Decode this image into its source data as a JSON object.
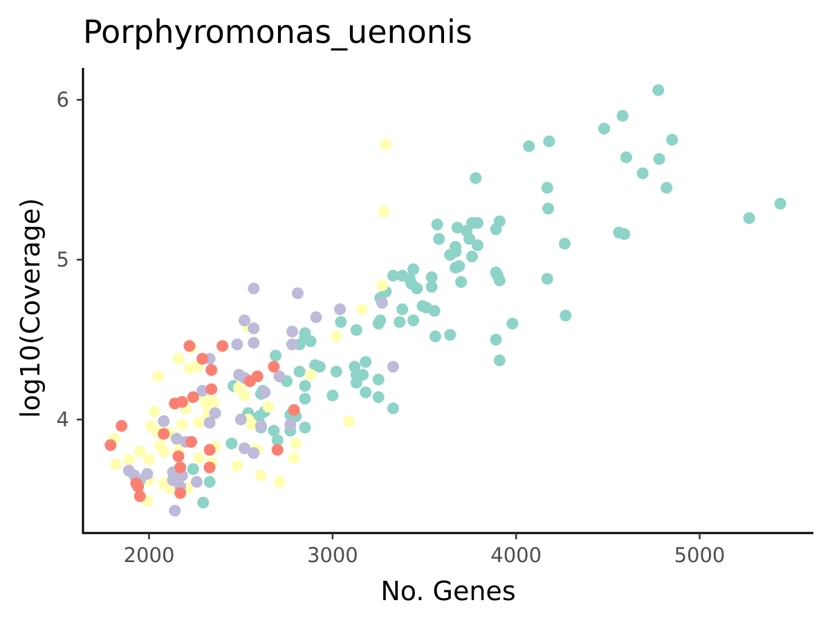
{
  "chart_data": {
    "type": "scatter",
    "title": "Porphyromonas_uenonis",
    "xlabel": "No. Genes",
    "ylabel": "log10(Coverage)",
    "xlim": [
      1640,
      5620
    ],
    "ylim": [
      3.29,
      6.2
    ],
    "xticks": [
      "2000",
      "3000",
      "4000",
      "5000"
    ],
    "yticks": [
      "4",
      "5",
      "6"
    ],
    "grid": false,
    "legend": "none",
    "series": [
      {
        "color": "#8DD3C7",
        "points": [
          [
            4775,
            6.06
          ],
          [
            4580,
            5.9
          ],
          [
            4480,
            5.82
          ],
          [
            4850,
            5.75
          ],
          [
            4180,
            5.74
          ],
          [
            4070,
            5.71
          ],
          [
            4600,
            5.64
          ],
          [
            4780,
            5.63
          ],
          [
            4690,
            5.54
          ],
          [
            3780,
            5.51
          ],
          [
            4170,
            5.45
          ],
          [
            4820,
            5.45
          ],
          [
            5440,
            5.35
          ],
          [
            4175,
            5.32
          ],
          [
            5270,
            5.26
          ],
          [
            3910,
            5.24
          ],
          [
            3760,
            5.23
          ],
          [
            3790,
            5.23
          ],
          [
            3570,
            5.22
          ],
          [
            3680,
            5.2
          ],
          [
            3730,
            5.18
          ],
          [
            3890,
            5.19
          ],
          [
            4560,
            5.17
          ],
          [
            4590,
            5.16
          ],
          [
            3580,
            5.13
          ],
          [
            3745,
            5.13
          ],
          [
            4265,
            5.1
          ],
          [
            3790,
            5.09
          ],
          [
            3670,
            5.08
          ],
          [
            3670,
            5.05
          ],
          [
            3640,
            5.03
          ],
          [
            3760,
            5.02
          ],
          [
            3690,
            4.96
          ],
          [
            3670,
            4.95
          ],
          [
            3440,
            4.94
          ],
          [
            3330,
            4.9
          ],
          [
            3380,
            4.9
          ],
          [
            3420,
            4.88
          ],
          [
            3540,
            4.89
          ],
          [
            3890,
            4.92
          ],
          [
            3900,
            4.9
          ],
          [
            3910,
            4.87
          ],
          [
            4170,
            4.88
          ],
          [
            3700,
            4.86
          ],
          [
            3430,
            4.85
          ],
          [
            3460,
            4.82
          ],
          [
            3540,
            4.83
          ],
          [
            3290,
            4.8
          ],
          [
            3260,
            4.76
          ],
          [
            3380,
            4.69
          ],
          [
            3490,
            4.71
          ],
          [
            3510,
            4.7
          ],
          [
            3555,
            4.68
          ],
          [
            3440,
            4.62
          ],
          [
            3365,
            4.61
          ],
          [
            3250,
            4.6
          ],
          [
            3260,
            4.62
          ],
          [
            3045,
            4.61
          ],
          [
            3130,
            4.56
          ],
          [
            3980,
            4.6
          ],
          [
            4270,
            4.65
          ],
          [
            3890,
            4.5
          ],
          [
            3560,
            4.52
          ],
          [
            3640,
            4.53
          ],
          [
            2850,
            4.54
          ],
          [
            2850,
            4.51
          ],
          [
            2880,
            4.49
          ],
          [
            2820,
            4.47
          ],
          [
            3910,
            4.37
          ],
          [
            2690,
            4.4
          ],
          [
            2905,
            4.34
          ],
          [
            2930,
            4.33
          ],
          [
            2820,
            4.3
          ],
          [
            3020,
            4.3
          ],
          [
            3120,
            4.33
          ],
          [
            3180,
            4.36
          ],
          [
            3130,
            4.28
          ],
          [
            3165,
            4.28
          ],
          [
            3130,
            4.23
          ],
          [
            3250,
            4.25
          ],
          [
            2750,
            4.24
          ],
          [
            2850,
            4.21
          ],
          [
            2460,
            4.21
          ],
          [
            2620,
            4.18
          ],
          [
            2610,
            4.16
          ],
          [
            3000,
            4.15
          ],
          [
            3180,
            4.17
          ],
          [
            3250,
            4.14
          ],
          [
            2850,
            4.13
          ],
          [
            3330,
            4.07
          ],
          [
            2630,
            4.05
          ],
          [
            2540,
            4.04
          ],
          [
            2600,
            4.02
          ],
          [
            2770,
            4.03
          ],
          [
            2800,
            4.02
          ],
          [
            2600,
            3.98
          ],
          [
            2610,
            3.95
          ],
          [
            2680,
            3.93
          ],
          [
            2770,
            3.93
          ],
          [
            2850,
            3.95
          ],
          [
            2700,
            3.87
          ],
          [
            2450,
            3.85
          ],
          [
            2240,
            3.69
          ],
          [
            2330,
            3.61
          ],
          [
            2130,
            3.62
          ],
          [
            2295,
            3.48
          ]
        ]
      },
      {
        "color": "#FFFFB3",
        "points": [
          [
            3290,
            5.72
          ],
          [
            3280,
            5.3
          ],
          [
            3270,
            4.84
          ],
          [
            3160,
            4.69
          ],
          [
            2540,
            4.58
          ],
          [
            3020,
            4.52
          ],
          [
            2230,
            4.45
          ],
          [
            2160,
            4.38
          ],
          [
            2260,
            4.33
          ],
          [
            2220,
            4.32
          ],
          [
            2880,
            4.28
          ],
          [
            2050,
            4.27
          ],
          [
            2520,
            4.26
          ],
          [
            2510,
            4.24
          ],
          [
            2490,
            4.2
          ],
          [
            2290,
            4.17
          ],
          [
            2520,
            4.15
          ],
          [
            2300,
            4.14
          ],
          [
            2310,
            4.1
          ],
          [
            2350,
            4.11
          ],
          [
            2650,
            4.08
          ],
          [
            2200,
            4.07
          ],
          [
            2030,
            4.05
          ],
          [
            2330,
            4.05
          ],
          [
            2350,
            4.03
          ],
          [
            2320,
            4.02
          ],
          [
            2270,
            3.98
          ],
          [
            2180,
            3.97
          ],
          [
            2540,
            4.0
          ],
          [
            2560,
            3.97
          ],
          [
            3090,
            3.99
          ],
          [
            2010,
            3.96
          ],
          [
            2040,
            3.93
          ],
          [
            2100,
            3.92
          ],
          [
            2130,
            3.9
          ],
          [
            1810,
            3.88
          ],
          [
            2170,
            3.86
          ],
          [
            2060,
            3.84
          ],
          [
            2800,
            3.85
          ],
          [
            2360,
            3.83
          ],
          [
            1950,
            3.8
          ],
          [
            2080,
            3.8
          ],
          [
            2160,
            3.8
          ],
          [
            2560,
            3.81
          ],
          [
            2590,
            3.81
          ],
          [
            2270,
            3.76
          ],
          [
            1890,
            3.75
          ],
          [
            2000,
            3.75
          ],
          [
            2790,
            3.76
          ],
          [
            1820,
            3.72
          ],
          [
            2340,
            3.73
          ],
          [
            2480,
            3.71
          ],
          [
            2080,
            3.6
          ],
          [
            2100,
            3.6
          ],
          [
            2000,
            3.62
          ],
          [
            2610,
            3.65
          ],
          [
            2710,
            3.61
          ],
          [
            2110,
            3.57
          ],
          [
            2210,
            3.57
          ],
          [
            1990,
            3.49
          ]
        ]
      },
      {
        "color": "#BEBADA",
        "points": [
          [
            2570,
            4.82
          ],
          [
            2810,
            4.79
          ],
          [
            3270,
            4.73
          ],
          [
            3040,
            4.69
          ],
          [
            2910,
            4.64
          ],
          [
            2520,
            4.62
          ],
          [
            2570,
            4.57
          ],
          [
            2780,
            4.55
          ],
          [
            2480,
            4.47
          ],
          [
            2570,
            4.48
          ],
          [
            2780,
            4.47
          ],
          [
            2330,
            4.38
          ],
          [
            3330,
            4.33
          ],
          [
            2490,
            4.28
          ],
          [
            2520,
            4.26
          ],
          [
            2710,
            4.27
          ],
          [
            2290,
            4.18
          ],
          [
            2630,
            4.17
          ],
          [
            2360,
            4.04
          ],
          [
            2080,
            3.99
          ],
          [
            2500,
            4.0
          ],
          [
            2330,
            3.98
          ],
          [
            2770,
            3.97
          ],
          [
            2610,
            3.96
          ],
          [
            2150,
            3.88
          ],
          [
            2200,
            3.86
          ],
          [
            2520,
            3.82
          ],
          [
            2570,
            3.79
          ],
          [
            1890,
            3.68
          ],
          [
            1920,
            3.65
          ],
          [
            1950,
            3.62
          ],
          [
            1990,
            3.66
          ],
          [
            2130,
            3.67
          ],
          [
            2180,
            3.65
          ],
          [
            2130,
            3.62
          ],
          [
            2260,
            3.61
          ],
          [
            2170,
            3.58
          ],
          [
            2140,
            3.43
          ]
        ]
      },
      {
        "color": "#FB8072",
        "points": [
          [
            2220,
            4.46
          ],
          [
            2400,
            4.46
          ],
          [
            2290,
            4.38
          ],
          [
            2680,
            4.33
          ],
          [
            2340,
            4.31
          ],
          [
            2590,
            4.27
          ],
          [
            2550,
            4.24
          ],
          [
            2340,
            4.19
          ],
          [
            2240,
            4.14
          ],
          [
            2180,
            4.11
          ],
          [
            2140,
            4.1
          ],
          [
            2790,
            4.06
          ],
          [
            1850,
            3.96
          ],
          [
            2080,
            3.91
          ],
          [
            2230,
            3.86
          ],
          [
            1790,
            3.84
          ],
          [
            2700,
            3.81
          ],
          [
            2330,
            3.81
          ],
          [
            2160,
            3.77
          ],
          [
            2170,
            3.7
          ],
          [
            2330,
            3.7
          ],
          [
            1930,
            3.6
          ],
          [
            1940,
            3.58
          ],
          [
            2170,
            3.54
          ],
          [
            1950,
            3.52
          ]
        ]
      }
    ]
  }
}
